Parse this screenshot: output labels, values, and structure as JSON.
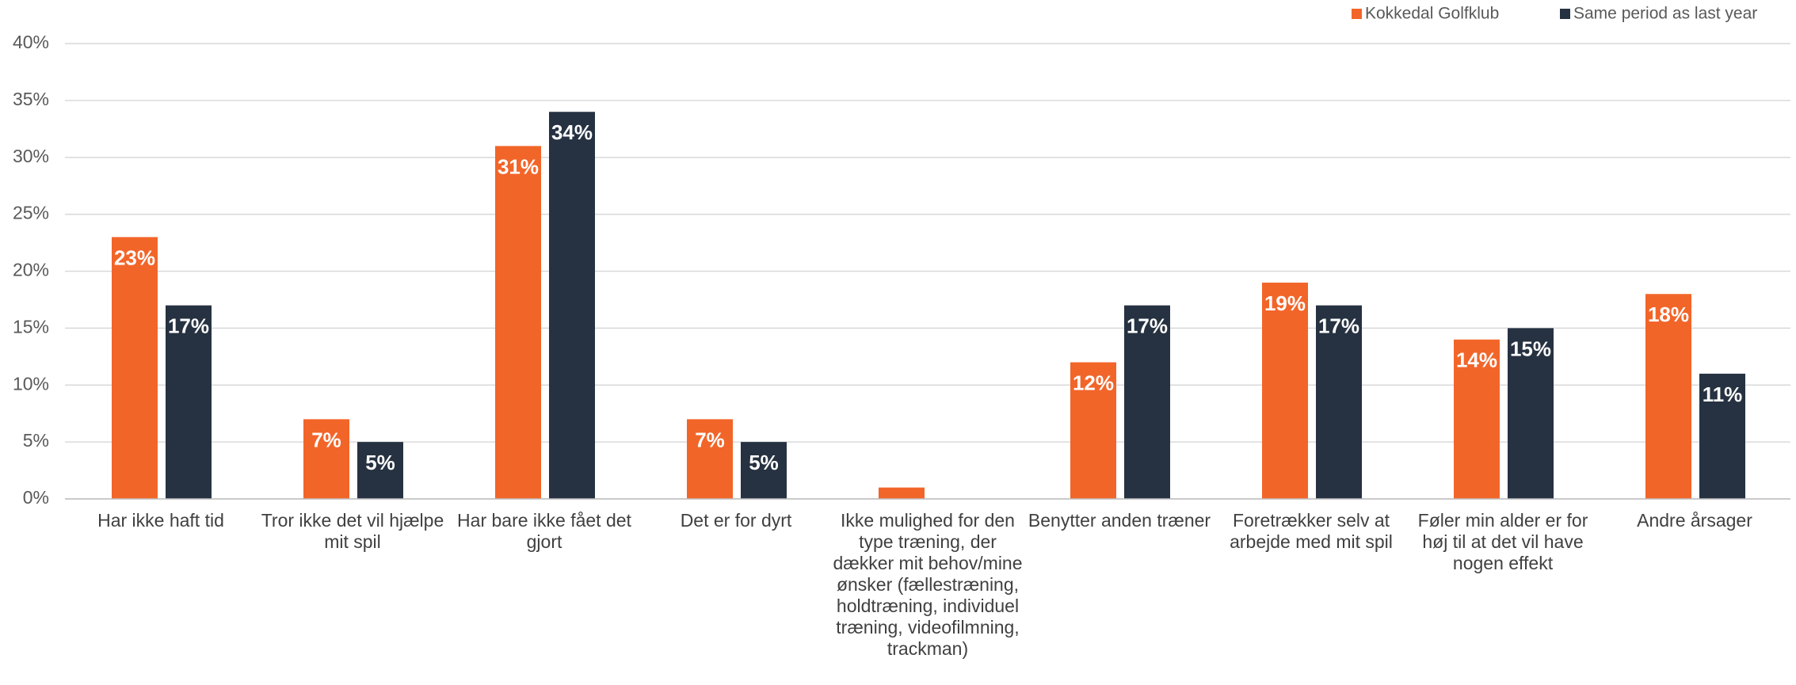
{
  "chart_data": {
    "type": "bar",
    "categories": [
      "Har ikke haft tid",
      "Tror ikke det vil hjælpe mit spil",
      "Har bare ikke fået det gjort",
      "Det er for dyrt",
      "Ikke mulighed for den type træning, der dækker mit behov/mine ønsker (fællestræning, holdtræning, individuel træning, videofilmning, trackman)",
      "Benytter anden træner",
      "Foretrækker selv at arbejde med mit spil",
      "Føler min alder er for høj til at det vil have nogen effekt",
      "Andre årsager"
    ],
    "series": [
      {
        "name": "Kokkedal Golfklub",
        "color": "#f26529",
        "values": [
          23,
          7,
          31,
          7,
          1,
          12,
          19,
          14,
          18
        ],
        "value_labels": [
          "23%",
          "7%",
          "31%",
          "7%",
          null,
          "12%",
          "19%",
          "14%",
          "18%"
        ]
      },
      {
        "name": "Same period as last year",
        "color": "#263241",
        "values": [
          17,
          5,
          34,
          5,
          null,
          17,
          17,
          15,
          11
        ],
        "value_labels": [
          "17%",
          "5%",
          "34%",
          "5%",
          null,
          "17%",
          "17%",
          "15%",
          "11%"
        ]
      }
    ],
    "ylim": [
      0,
      40
    ],
    "yticks": [
      {
        "value": 0,
        "label": "0%"
      },
      {
        "value": 5,
        "label": "5%"
      },
      {
        "value": 10,
        "label": "10%"
      },
      {
        "value": 15,
        "label": "15%"
      },
      {
        "value": 20,
        "label": "20%"
      },
      {
        "value": 25,
        "label": "25%"
      },
      {
        "value": 30,
        "label": "30%"
      },
      {
        "value": 35,
        "label": "35%"
      },
      {
        "value": 40,
        "label": "40%"
      }
    ],
    "grid": true,
    "legend": "top-right"
  }
}
